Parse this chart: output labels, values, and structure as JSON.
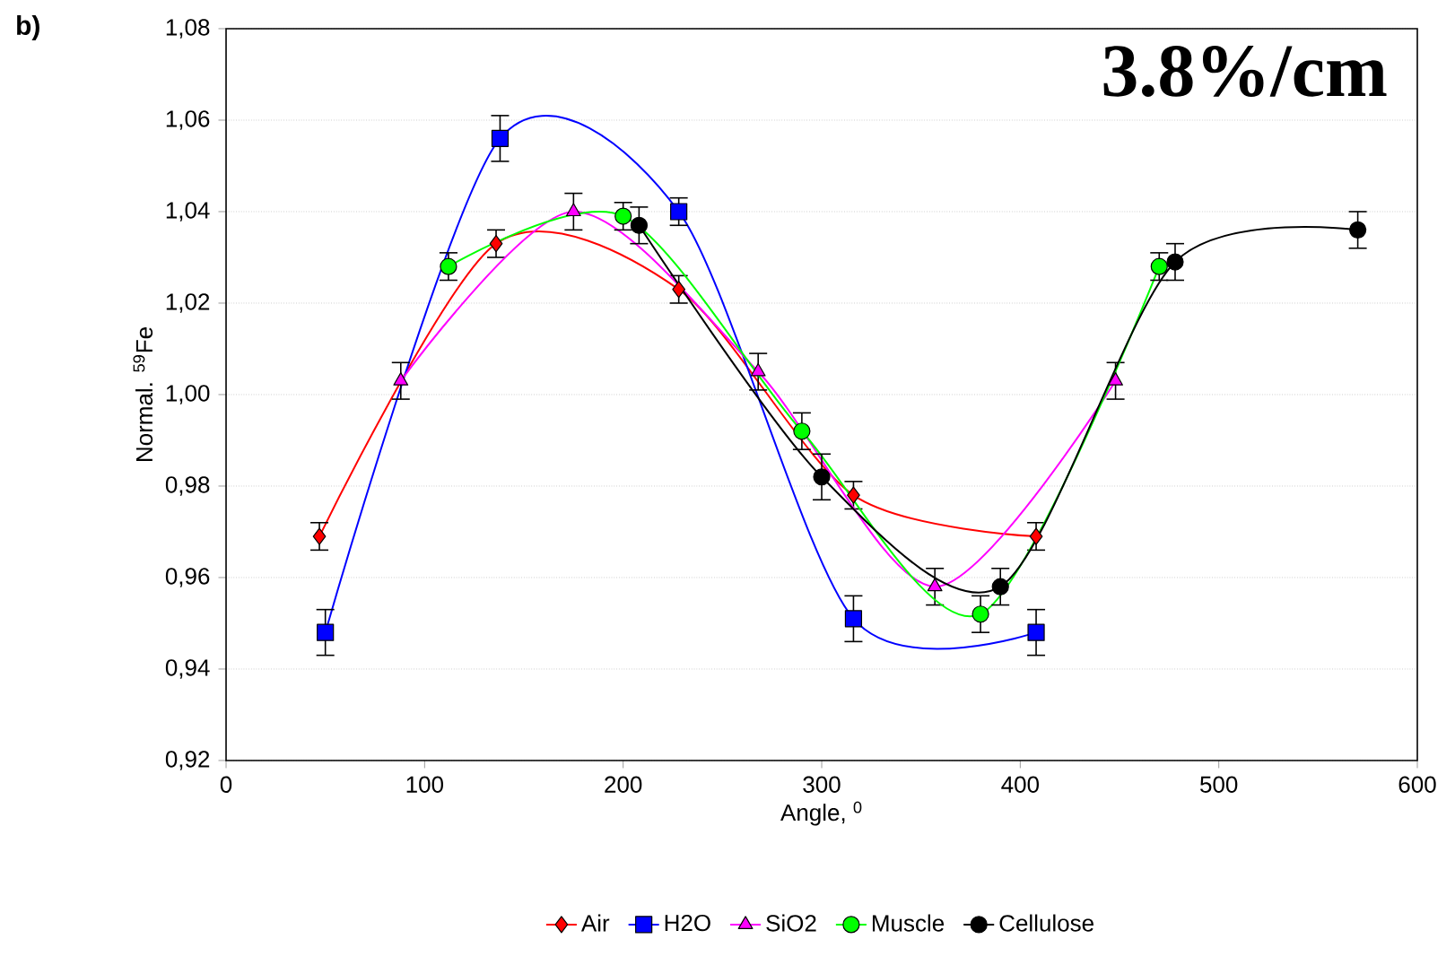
{
  "chart_data": {
    "type": "line",
    "xlabel": "Angle, $^{0}$",
    "ylabel": "Normal. $^{59}$Fe",
    "annotations": [
      "b)",
      "3.8%/cm"
    ],
    "xlim": [
      0,
      600
    ],
    "xticks": [
      0,
      100,
      200,
      300,
      400,
      500,
      600
    ],
    "ylim": [
      0.92,
      1.08
    ],
    "yticks": [
      {
        "value": 0.92,
        "label": "0,92"
      },
      {
        "value": 0.94,
        "label": "0,94"
      },
      {
        "value": 0.96,
        "label": "0,96"
      },
      {
        "value": 0.98,
        "label": "0,98"
      },
      {
        "value": 1.0,
        "label": "1,00"
      },
      {
        "value": 1.02,
        "label": "1,02"
      },
      {
        "value": 1.04,
        "label": "1,04"
      },
      {
        "value": 1.06,
        "label": "1,06"
      },
      {
        "value": 1.08,
        "label": "1,08"
      }
    ],
    "grid": "y",
    "legend": "bottom",
    "series": [
      {
        "name": "Air",
        "color": "#ff0000",
        "marker": "diamond",
        "x": [
          47,
          136,
          228,
          316,
          408
        ],
        "values": [
          0.969,
          1.033,
          1.023,
          0.978,
          0.969
        ],
        "errors": [
          0.003,
          0.003,
          0.003,
          0.003,
          0.003
        ]
      },
      {
        "name": "H2O",
        "color": "#0000ff",
        "marker": "square",
        "x": [
          50,
          138,
          228,
          316,
          408
        ],
        "values": [
          0.948,
          1.056,
          1.04,
          0.951,
          0.948
        ],
        "errors": [
          0.005,
          0.005,
          0.003,
          0.005,
          0.005
        ]
      },
      {
        "name": "SiO2",
        "color": "#ff00ff",
        "marker": "triangle",
        "x": [
          88,
          175,
          268,
          357,
          448
        ],
        "values": [
          1.003,
          1.04,
          1.005,
          0.958,
          1.003
        ],
        "errors": [
          0.004,
          0.004,
          0.004,
          0.004,
          0.004
        ]
      },
      {
        "name": "Muscle",
        "color": "#00ff00",
        "marker": "circle",
        "x": [
          112,
          200,
          290,
          380,
          470
        ],
        "values": [
          1.028,
          1.039,
          0.992,
          0.952,
          1.028
        ],
        "errors": [
          0.003,
          0.003,
          0.004,
          0.004,
          0.003
        ]
      },
      {
        "name": "Cellulose",
        "color": "#000000",
        "marker": "circle",
        "x": [
          208,
          300,
          390,
          478,
          570
        ],
        "values": [
          1.037,
          0.982,
          0.958,
          1.029,
          1.036
        ],
        "errors": [
          0.004,
          0.005,
          0.004,
          0.004,
          0.004
        ]
      }
    ]
  }
}
